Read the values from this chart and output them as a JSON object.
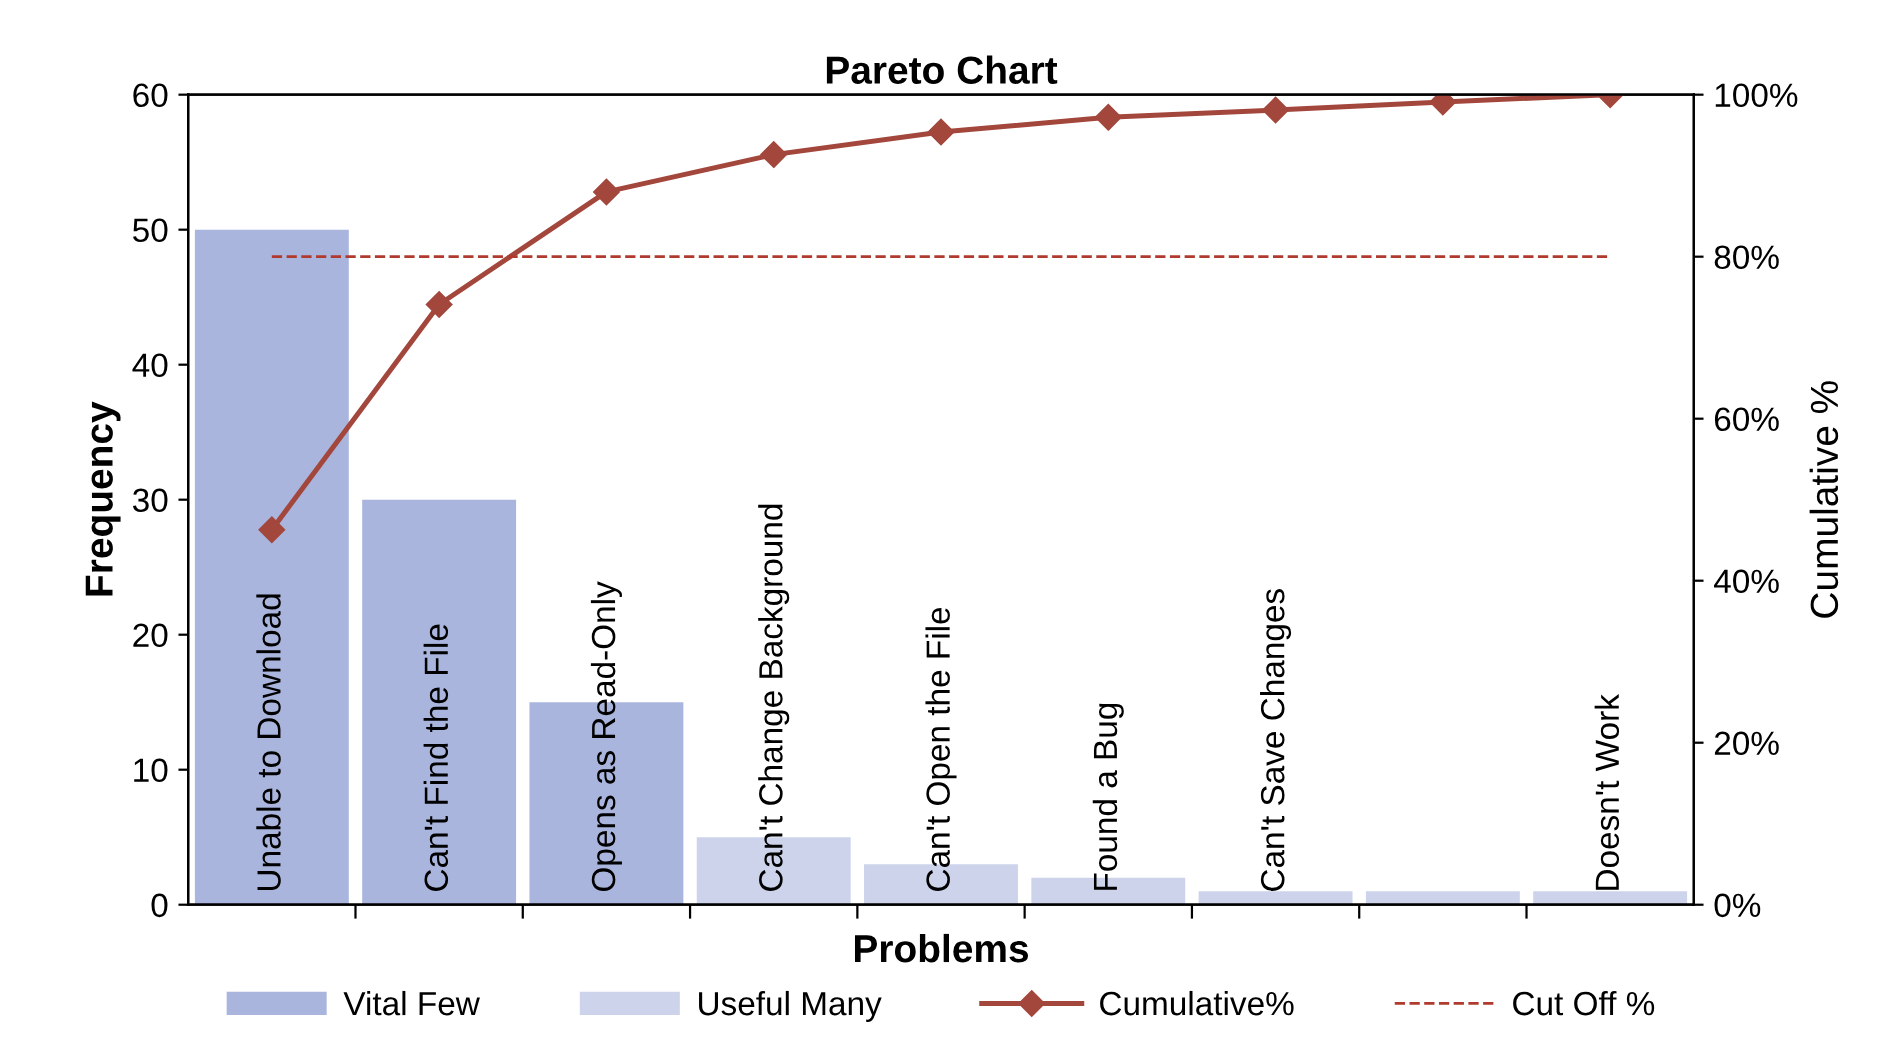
{
  "chart_data": {
    "type": "bar",
    "title": "Pareto Chart",
    "xlabel": "Problems",
    "ylabel": "Frequency",
    "y2label": "Cumulative %",
    "categories": [
      "Unable to Download",
      "Can't Find the File",
      "Opens as Read-Only",
      "Can't Change Background",
      "Can't Open the File",
      "Found a Bug",
      "Can't Save Changes",
      null,
      "Doesn't Work"
    ],
    "series": [
      {
        "name": "Vital Few",
        "color": "#a9b5dd",
        "values": [
          50,
          30,
          15,
          null,
          null,
          null,
          null,
          null,
          null
        ]
      },
      {
        "name": "Useful Many",
        "color": "#ccd3eb",
        "values": [
          null,
          null,
          null,
          5,
          3,
          2,
          1,
          1,
          1
        ]
      },
      {
        "name": "Cumulative%",
        "type": "line",
        "axis": "y2",
        "color": "#a3473d",
        "marker": "diamond",
        "values": [
          46.3,
          74.1,
          88.0,
          92.6,
          95.4,
          97.2,
          98.1,
          99.1,
          100
        ]
      }
    ],
    "ylim": [
      0,
      60
    ],
    "yticks": [
      0,
      10,
      20,
      30,
      40,
      50,
      60
    ],
    "y2lim": [
      0,
      100
    ],
    "y2ticks": [
      {
        "value": 0,
        "label": "0%"
      },
      {
        "value": 20,
        "label": "20%"
      },
      {
        "value": 40,
        "label": "40%"
      },
      {
        "value": 60,
        "label": "60%"
      },
      {
        "value": 80,
        "label": "80%"
      },
      {
        "value": 100,
        "label": "100%"
      }
    ],
    "ref_lines": [
      {
        "axis": "y2",
        "value": 80,
        "label": "Cut Off %",
        "color": "#b03a2e",
        "line_style": "dashed"
      }
    ],
    "grid": false,
    "legend": "bottom"
  }
}
